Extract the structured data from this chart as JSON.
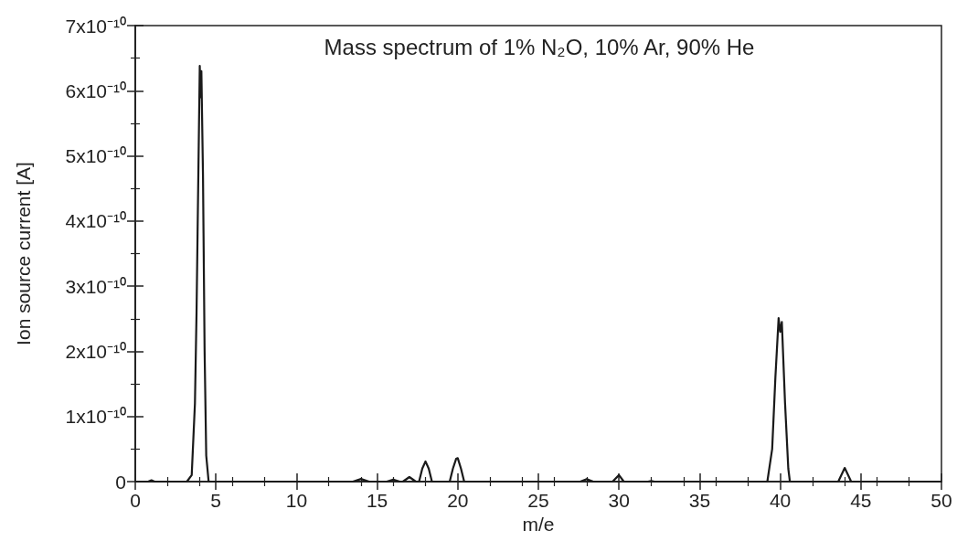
{
  "chart_data": {
    "type": "line",
    "title": "Mass spectrum of 1% N₂O, 10% Ar, 90% He",
    "xlabel": "m/e",
    "ylabel": "Ion source current [A]",
    "xlim": [
      0,
      50
    ],
    "xticks": [
      0,
      5,
      10,
      15,
      20,
      25,
      30,
      35,
      40,
      45,
      50
    ],
    "ylim": [
      0,
      7e-10
    ],
    "yticks": [
      0,
      {
        "value": 1e-10,
        "label": "1x10⁻¹⁰"
      },
      {
        "value": 2e-10,
        "label": "2x10⁻¹⁰"
      },
      {
        "value": 3e-10,
        "label": "3x10⁻¹⁰"
      },
      {
        "value": 4e-10,
        "label": "4x10⁻¹⁰"
      },
      {
        "value": 5e-10,
        "label": "5x10⁻¹⁰"
      },
      {
        "value": 6e-10,
        "label": "6x10⁻¹⁰"
      },
      {
        "value": 7e-10,
        "label": "7x10⁻¹⁰"
      }
    ],
    "grid": false,
    "marker": "none",
    "line_style": "solid",
    "series": [
      {
        "color": "#1a1a1a",
        "x": [
          0,
          0.8,
          1,
          1.2,
          3.2,
          3.5,
          3.7,
          3.8,
          3.9,
          4.0,
          4.05,
          4.1,
          4.2,
          4.3,
          4.4,
          4.55,
          13.5,
          14,
          14.5,
          15.6,
          16,
          16.4,
          16.6,
          17,
          17.4,
          17.6,
          17.8,
          18,
          18.2,
          18.4,
          19.5,
          19.7,
          19.9,
          20,
          20.2,
          20.4,
          27.6,
          28,
          28.4,
          29.6,
          30,
          30.3,
          31.8,
          32,
          32.2,
          39.2,
          39.5,
          39.7,
          39.9,
          40,
          40.1,
          40.3,
          40.5,
          40.6,
          43.6,
          44,
          44.4,
          50
        ],
        "values": [
          0,
          0,
          2e-12,
          0,
          0,
          1e-11,
          1.2e-10,
          2.6e-10,
          4.5e-10,
          6.38e-10,
          5.9e-10,
          6.3e-10,
          4.7e-10,
          2e-10,
          4e-11,
          0,
          0,
          4e-12,
          0,
          0,
          3e-12,
          0,
          0,
          7e-12,
          0,
          0,
          2e-11,
          3.1e-11,
          2e-11,
          0,
          0,
          2e-11,
          3.5e-11,
          3.6e-11,
          2e-11,
          0,
          0,
          4e-12,
          0,
          0,
          1e-11,
          0,
          0,
          1e-12,
          0,
          0,
          5e-11,
          1.6e-10,
          2.51e-10,
          2.3e-10,
          2.45e-10,
          1.2e-10,
          2e-11,
          0,
          0,
          2.1e-11,
          0,
          0
        ]
      }
    ]
  }
}
